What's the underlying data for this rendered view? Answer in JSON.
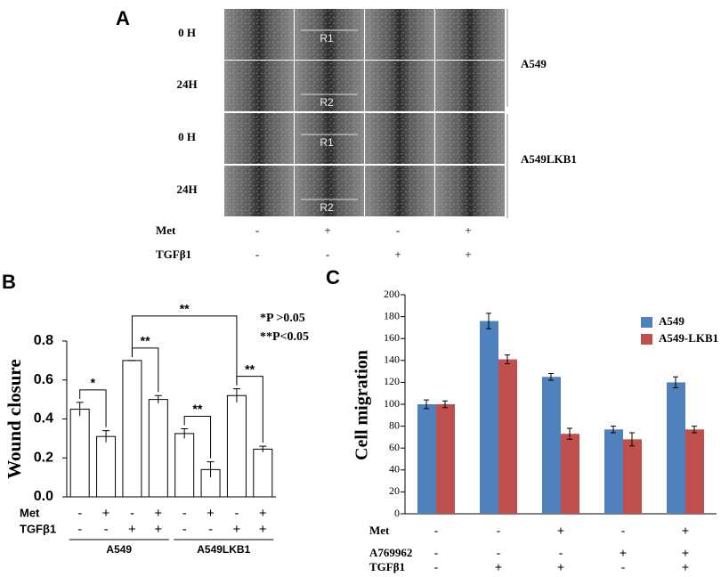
{
  "panel_labels": {
    "a": "A",
    "b": "B",
    "c": "C"
  },
  "wound_images": {
    "row_labels": [
      "0 H",
      "24H",
      "0 H",
      "24H"
    ],
    "region_labels": [
      "R1",
      "R2",
      "R1",
      "R2"
    ],
    "group_labels": [
      "A549",
      "A549LKB1"
    ],
    "treatments": [
      {
        "name": "Met",
        "signs": [
          "-",
          "+",
          "-",
          "+"
        ]
      },
      {
        "name": "TGFβ1",
        "signs": [
          "-",
          "-",
          "+",
          "+"
        ]
      }
    ]
  },
  "chart_data": [
    {
      "type": "bar",
      "y_label": "Wound closure",
      "categories": [
        null,
        null,
        null,
        null,
        null,
        null,
        null,
        null
      ],
      "values": [
        0.45,
        0.31,
        0.7,
        0.5,
        0.325,
        0.14,
        0.52,
        0.245
      ],
      "errors": [
        0.035,
        0.03,
        0.0,
        0.02,
        0.025,
        0.04,
        0.035,
        0.015
      ],
      "color": "#ffffff",
      "ylim": [
        0,
        0.8
      ],
      "yticks": [
        {
          "value": 0,
          "label": "0.0"
        },
        0.2,
        0.4,
        0.6,
        0.8
      ],
      "treatments": [
        {
          "name": "Met",
          "signs": [
            "-",
            "+",
            "-",
            "+",
            "-",
            "+",
            "-",
            "+"
          ]
        },
        {
          "name": "TGFβ1",
          "signs": [
            "-",
            "-",
            "+",
            "+",
            "-",
            "-",
            "+",
            "+"
          ]
        }
      ],
      "groups": [
        "A549",
        "A549LKB1"
      ],
      "significance": [
        {
          "label": "*",
          "bars": [
            0,
            1
          ]
        },
        {
          "label": "**",
          "bars": [
            2,
            3
          ]
        },
        {
          "label": "**",
          "bars": [
            4,
            5
          ]
        },
        {
          "label": "**",
          "bars": [
            6,
            7
          ]
        },
        {
          "label": "**",
          "bars": [
            2,
            6
          ]
        }
      ],
      "notes": [
        "*P >0.05",
        "**P<0.05"
      ]
    },
    {
      "type": "grouped_bar",
      "y_label": "Cell migration",
      "categories": [
        null,
        null,
        null,
        null,
        null
      ],
      "series": [
        {
          "name": "A549",
          "color": "#4f81bd",
          "values": [
            100,
            176,
            125,
            77,
            120
          ],
          "errors": [
            4,
            7,
            3,
            3,
            5
          ]
        },
        {
          "name": "A549-LKB1",
          "color": "#c0504d",
          "values": [
            100,
            141,
            73,
            68,
            77
          ],
          "errors": [
            3,
            4,
            5,
            6,
            3
          ]
        }
      ],
      "ylim": [
        0,
        200
      ],
      "yticks": [
        0,
        20,
        40,
        60,
        80,
        100,
        120,
        140,
        160,
        180,
        200
      ],
      "legend": "upper right",
      "treatments": [
        {
          "name": "Met",
          "signs": [
            "-",
            "-",
            "+",
            "-",
            "+"
          ]
        },
        {
          "name": "A769962",
          "signs": [
            "-",
            "-",
            "-",
            "+",
            "+"
          ]
        },
        {
          "name": "TGFβ1",
          "signs": [
            "-",
            "+",
            "+",
            "-",
            "+"
          ]
        }
      ]
    }
  ]
}
